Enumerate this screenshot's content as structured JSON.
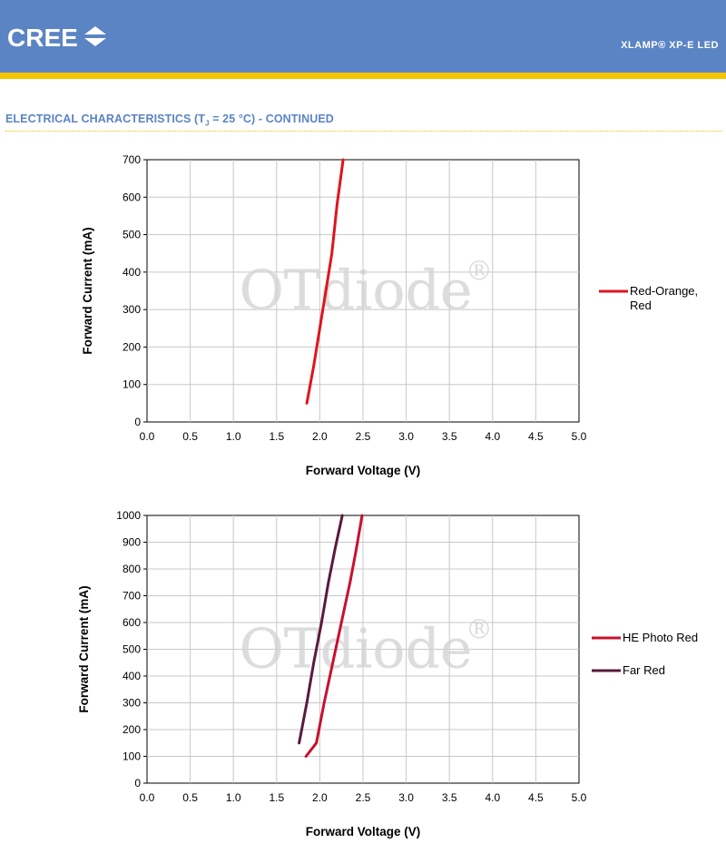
{
  "header": {
    "logo_text": "CREE",
    "product": "XLAMP® XP-E LED"
  },
  "section": {
    "title_prefix": "ELECTRICAL CHARACTERISTICS (T",
    "title_sub": "J",
    "title_suffix": " = 25 °C) - CONTINUED"
  },
  "watermark": "OTdiode",
  "watermark_mark": "®",
  "colors": {
    "brand_blue": "#5b84c4",
    "brand_yellow": "#f5c400",
    "red": "#e0141e",
    "dark_red": "#c8102e",
    "far_red": "#5a1a3c"
  },
  "chart_data": [
    {
      "type": "line",
      "xlabel": "Forward Voltage (V)",
      "ylabel": "Forward Current (mA)",
      "xlim": [
        0,
        5
      ],
      "ylim": [
        0,
        700
      ],
      "xticks": [
        "0.0",
        "0.5",
        "1.0",
        "1.5",
        "2.0",
        "2.5",
        "3.0",
        "3.5",
        "4.0",
        "4.5",
        "5.0"
      ],
      "yticks": [
        "0",
        "100",
        "200",
        "300",
        "400",
        "500",
        "600",
        "700"
      ],
      "grid": true,
      "legend_position": "right",
      "series": [
        {
          "name": "Red-Orange, Red",
          "name_lines": [
            "Red-Orange,",
            "Red"
          ],
          "color": "#e0141e",
          "x": [
            1.85,
            1.93,
            2.0,
            2.07,
            2.14,
            2.2,
            2.27
          ],
          "y": [
            50,
            150,
            250,
            350,
            450,
            580,
            700
          ]
        }
      ]
    },
    {
      "type": "line",
      "xlabel": "Forward Voltage (V)",
      "ylabel": "Forward Current (mA)",
      "xlim": [
        0,
        5
      ],
      "ylim": [
        0,
        1000
      ],
      "xticks": [
        "0.0",
        "0.5",
        "1.0",
        "1.5",
        "2.0",
        "2.5",
        "3.0",
        "3.5",
        "4.0",
        "4.5",
        "5.0"
      ],
      "yticks": [
        "0",
        "100",
        "200",
        "300",
        "400",
        "500",
        "600",
        "700",
        "800",
        "900",
        "1000"
      ],
      "grid": true,
      "legend_position": "right",
      "series": [
        {
          "name": "HE Photo Red",
          "name_lines": [
            "HE Photo Red"
          ],
          "color": "#c8102e",
          "x": [
            1.84,
            1.96,
            2.05,
            2.15,
            2.25,
            2.35,
            2.42,
            2.49
          ],
          "y": [
            100,
            150,
            300,
            450,
            600,
            750,
            870,
            1000
          ]
        },
        {
          "name": "Far Red",
          "name_lines": [
            "Far Red"
          ],
          "color": "#5a1a3c",
          "x": [
            1.76,
            1.85,
            1.93,
            2.02,
            2.1,
            2.18,
            2.26
          ],
          "y": [
            150,
            300,
            450,
            600,
            750,
            880,
            1000
          ]
        }
      ]
    }
  ]
}
